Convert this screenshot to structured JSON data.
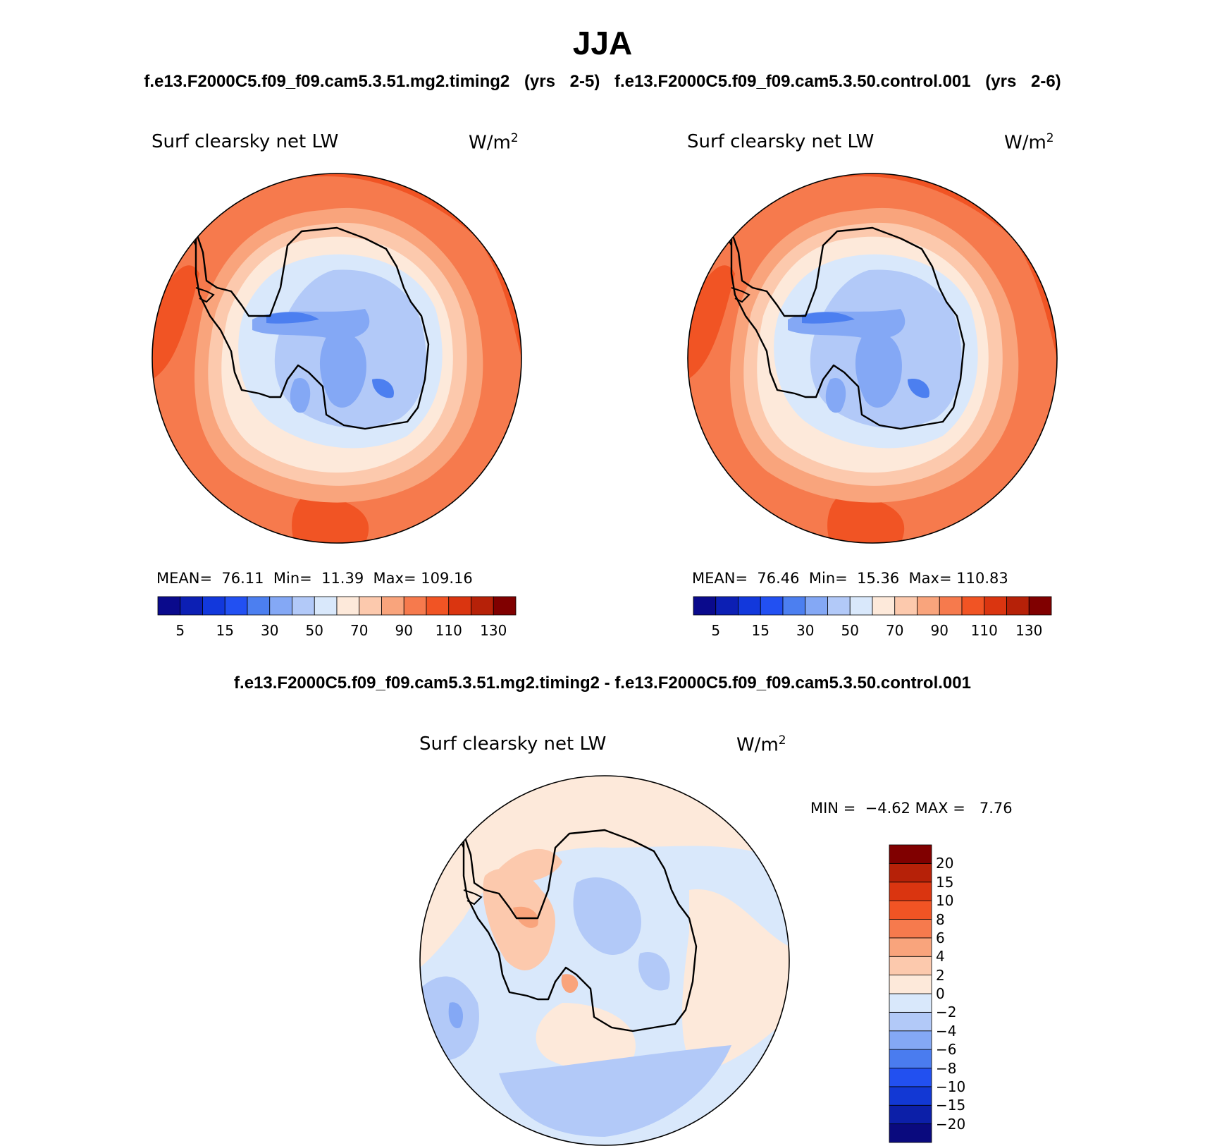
{
  "header": {
    "season": "JJA",
    "cases": "f.e13.F2000C5.f09_f09.cam5.3.51.mg2.timing2 (yrs 2-5)   f.e13.F2000C5.f09_f09.cam5.3.50.control.001 (yrs 2-6)",
    "diff_title": "f.e13.F2000C5.f09_f09.cam5.3.51.mg2.timing2 - f.e13.F2000C5.f09_f09.cam5.3.50.control.001"
  },
  "panels": {
    "left": {
      "title": "Surf clearsky net LW",
      "units": "W/m",
      "units_sup": "2",
      "stats": "MEAN=  76.11  Min=  11.39  Max= 109.16"
    },
    "right": {
      "title": "Surf clearsky net LW",
      "units": "W/m",
      "units_sup": "2",
      "stats": "MEAN=  76.46  Min=  15.36  Max= 110.83"
    },
    "diff": {
      "title": "Surf clearsky net LW",
      "units": "W/m",
      "units_sup": "2",
      "stats": "MIN =  −4.62 MAX =   7.76"
    }
  },
  "chart_data": [
    {
      "type": "heatmap",
      "projection": "south-polar-stereographic",
      "title": "Surf clearsky net LW",
      "units": "W/m2",
      "case": "f.e13.F2000C5.f09_f09.cam5.3.51.mg2.timing2 (yrs 2-5)",
      "mean": 76.11,
      "min": 11.39,
      "max": 109.16,
      "levels": [
        5,
        10,
        15,
        20,
        30,
        40,
        50,
        60,
        70,
        80,
        90,
        100,
        110,
        120,
        130
      ],
      "tick_labels": [
        "5",
        "15",
        "30",
        "50",
        "70",
        "90",
        "110",
        "130"
      ],
      "colors": [
        "#0a0a8c",
        "#0c1fb4",
        "#1238dc",
        "#2250f2",
        "#4c7ff0",
        "#84a8f5",
        "#b2c9f8",
        "#d9e8fb",
        "#fde9da",
        "#fcc9ad",
        "#f9a47c",
        "#f67a4d",
        "#f15424",
        "#da3510",
        "#b62108",
        "#800000"
      ]
    },
    {
      "type": "heatmap",
      "projection": "south-polar-stereographic",
      "title": "Surf clearsky net LW",
      "units": "W/m2",
      "case": "f.e13.F2000C5.f09_f09.cam5.3.50.control.001 (yrs 2-6)",
      "mean": 76.46,
      "min": 15.36,
      "max": 110.83,
      "levels": [
        5,
        10,
        15,
        20,
        30,
        40,
        50,
        60,
        70,
        80,
        90,
        100,
        110,
        120,
        130
      ],
      "tick_labels": [
        "5",
        "15",
        "30",
        "50",
        "70",
        "90",
        "110",
        "130"
      ],
      "colors": [
        "#0a0a8c",
        "#0c1fb4",
        "#1238dc",
        "#2250f2",
        "#4c7ff0",
        "#84a8f5",
        "#b2c9f8",
        "#d9e8fb",
        "#fde9da",
        "#fcc9ad",
        "#f9a47c",
        "#f67a4d",
        "#f15424",
        "#da3510",
        "#b62108",
        "#800000"
      ]
    },
    {
      "type": "heatmap",
      "projection": "south-polar-stereographic",
      "title": "Surf clearsky net LW",
      "units": "W/m2",
      "case": "difference",
      "min": -4.62,
      "max": 7.76,
      "levels": [
        -20,
        -15,
        -10,
        -8,
        -6,
        -4,
        -2,
        0,
        2,
        4,
        6,
        8,
        10,
        15,
        20
      ],
      "tick_labels": [
        "20",
        "15",
        "10",
        "8",
        "6",
        "4",
        "2",
        "0",
        "−2",
        "−4",
        "−6",
        "−8",
        "−10",
        "−15",
        "−20"
      ],
      "colors": [
        "#0a0a7e",
        "#0c1fa8",
        "#1238d4",
        "#2250f0",
        "#4a7cef",
        "#84a8f5",
        "#b2c9f8",
        "#d9e8fb",
        "#fde9da",
        "#fcc9ad",
        "#f9a47c",
        "#f67a4d",
        "#f15424",
        "#da3510",
        "#b62108",
        "#800000"
      ]
    }
  ]
}
